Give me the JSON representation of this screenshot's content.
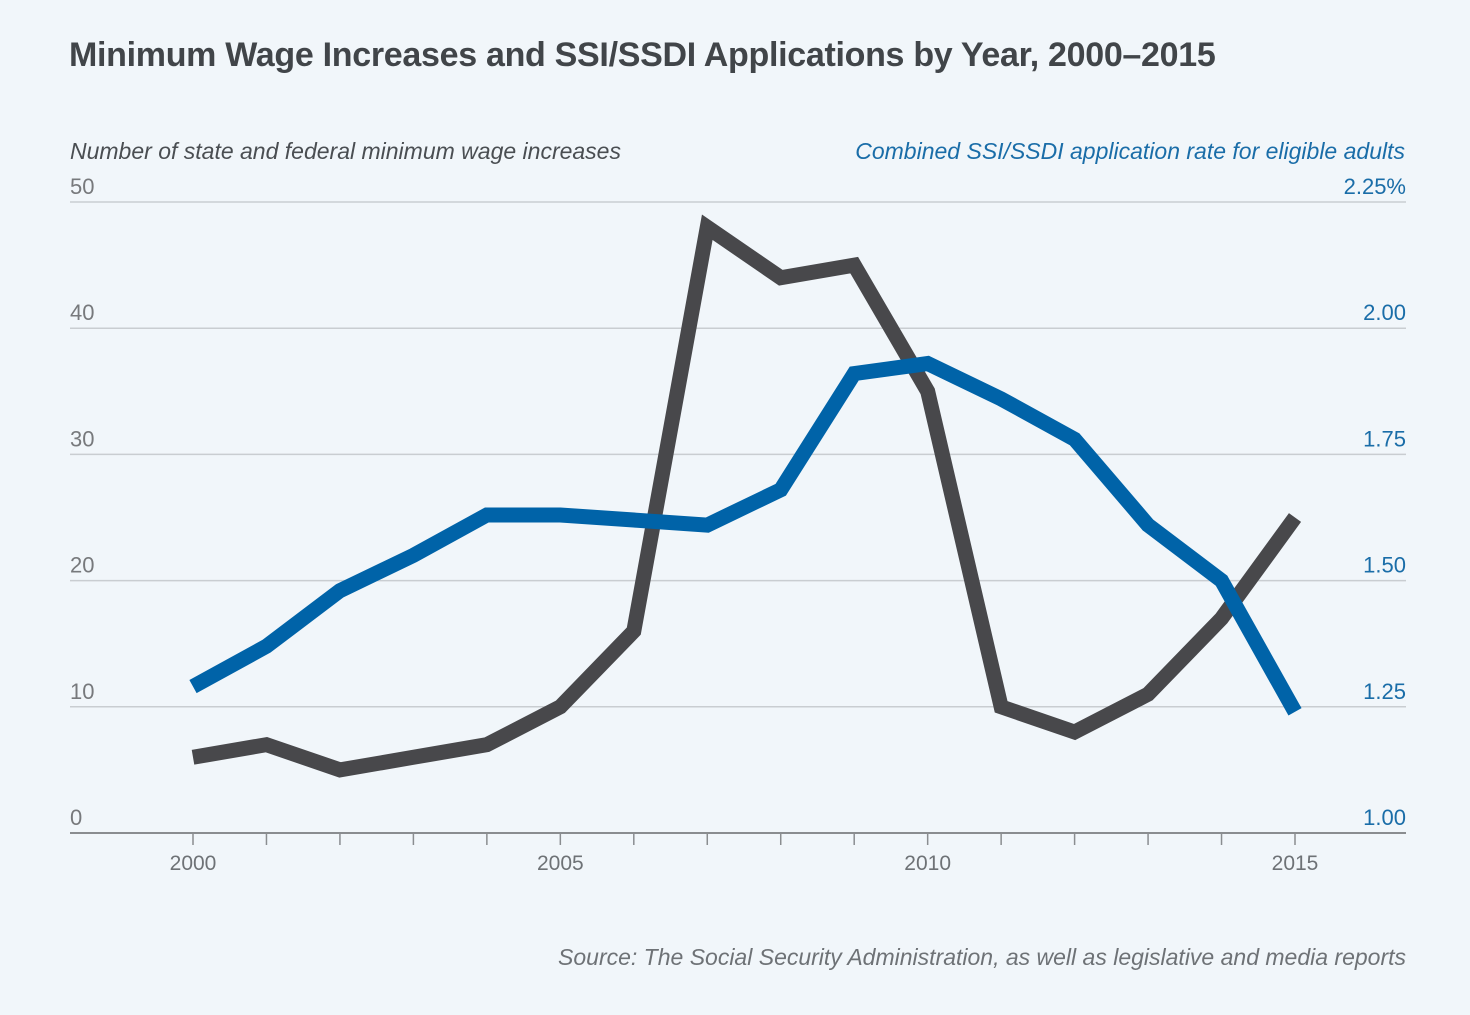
{
  "chart_data": {
    "type": "line",
    "title": "Minimum Wage Increases and SSI/SSDI Applications by Year, 2000–2015",
    "xlabel": "",
    "ylabel": "Number of state and federal minimum wage increases",
    "ylabel_right": "Combined SSI/SSDI application rate for eligible adults",
    "source": "Source: The Social Security Administration, as well as legislative and media reports",
    "x": [
      2000,
      2001,
      2002,
      2003,
      2004,
      2005,
      2006,
      2007,
      2008,
      2009,
      2010,
      2011,
      2012,
      2013,
      2014,
      2015
    ],
    "xlim": [
      1998.4,
      2016.5
    ],
    "x_tick_labels": [
      "2000",
      "2005",
      "2010",
      "2015"
    ],
    "x_tick_values": [
      2000,
      2005,
      2010,
      2015
    ],
    "ylim": [
      0,
      50
    ],
    "y_ticks": [
      0,
      10,
      20,
      30,
      40,
      50
    ],
    "y_tick_labels": [
      "0",
      "10",
      "20",
      "30",
      "40",
      "50"
    ],
    "ylim_right": [
      1.0,
      2.25
    ],
    "y_ticks_right": [
      1.0,
      1.25,
      1.5,
      1.75,
      2.0,
      2.25
    ],
    "y_tick_labels_right": [
      "1.00",
      "1.25",
      "1.50",
      "1.75",
      "2.00",
      "2.25%"
    ],
    "grid": true,
    "series": [
      {
        "name": "Number of state and federal minimum wage increases",
        "axis": "left",
        "color": "#48484b",
        "values": [
          6,
          7,
          5,
          6,
          7,
          10,
          16,
          48,
          44,
          45,
          35,
          10,
          8,
          11,
          17,
          25
        ]
      },
      {
        "name": "Combined SSI/SSDI application rate for eligible adults (%)",
        "axis": "right",
        "color": "#0063a8",
        "values": [
          1.29,
          1.37,
          1.48,
          1.55,
          1.63,
          1.63,
          1.62,
          1.61,
          1.68,
          1.91,
          1.93,
          1.86,
          1.78,
          1.61,
          1.5,
          1.24
        ]
      }
    ]
  },
  "colors": {
    "background": "#f1f6fa",
    "grid": "#c9cdd1",
    "axis": "#8a8d90",
    "title": "#414549",
    "right_axis_text": "#1a6da8"
  }
}
